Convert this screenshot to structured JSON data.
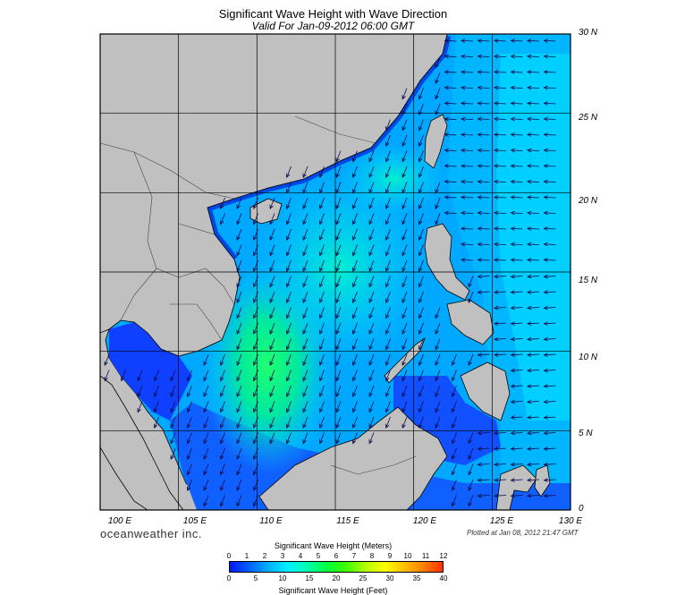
{
  "header": {
    "title": "Significant Wave Height with Wave Direction",
    "subtitle": "Valid For Jan-09-2012 06:00 GMT"
  },
  "map": {
    "region": "South China Sea",
    "lon_range": [
      100,
      130
    ],
    "lat_range": [
      0,
      30
    ],
    "lat_labels": [
      "30 N",
      "25 N",
      "20 N",
      "15 N",
      "10 N",
      "5 N",
      "0"
    ],
    "lon_labels": [
      "100 E",
      "105 E",
      "110 E",
      "115 E",
      "120 E",
      "125 E",
      "130 E"
    ],
    "grid": true,
    "land_color": "#c0c0c0",
    "arrow_color": "#0a0a4a",
    "wave_direction": "northeast monsoon, waves propagating toward southwest; Pacific side toward west"
  },
  "footer": {
    "brand": "oceanweather inc.",
    "plotted": "Plotted at Jan 08, 2012 21:47 GMT"
  },
  "colorbar": {
    "title_meters": "Significant Wave Height (Meters)",
    "title_feet": "Significant Wave Height (Feet)",
    "meters_ticks": [
      "0",
      "1",
      "2",
      "3",
      "4",
      "5",
      "6",
      "7",
      "8",
      "9",
      "10",
      "11",
      "12"
    ],
    "feet_ticks": [
      "0",
      "5",
      "10",
      "15",
      "20",
      "25",
      "30",
      "35",
      "40"
    ],
    "colors": [
      "#0018ff",
      "#0060ff",
      "#00b0ff",
      "#00f0ff",
      "#00ffb0",
      "#00ff40",
      "#40ff00",
      "#b0ff00",
      "#ffff00",
      "#ffc000",
      "#ff8000",
      "#ff3000"
    ]
  }
}
